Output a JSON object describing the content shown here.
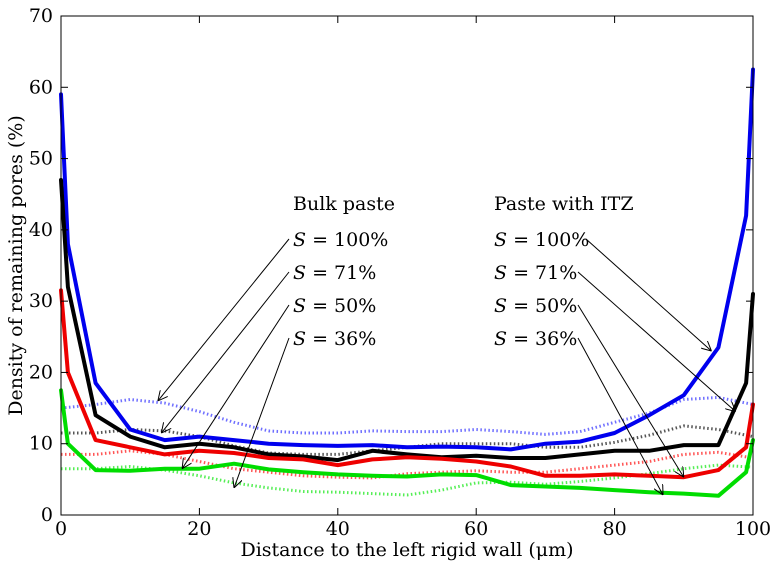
{
  "chart_data": {
    "type": "line",
    "xlabel": "Distance to the left rigid wall (μm)",
    "ylabel": "Density of remaining pores (%)",
    "xlim": [
      0,
      100
    ],
    "ylim": [
      0,
      70
    ],
    "xticks": [
      0,
      20,
      40,
      60,
      80,
      100
    ],
    "yticks": [
      0,
      10,
      20,
      30,
      40,
      50,
      60,
      70
    ],
    "grid": false,
    "series": [
      {
        "key": "itz-100",
        "color": "#0000ee",
        "style": "solid",
        "x": [
          0,
          1,
          5,
          10,
          15,
          20,
          25,
          30,
          35,
          40,
          45,
          50,
          55,
          60,
          65,
          70,
          75,
          80,
          85,
          90,
          95,
          99,
          100
        ],
        "y": [
          59,
          38,
          18.5,
          12,
          10.5,
          11,
          10.5,
          10,
          9.8,
          9.7,
          9.8,
          9.5,
          9.6,
          9.5,
          9.2,
          10,
          10.3,
          11.5,
          14,
          16.8,
          23.5,
          42,
          62.5
        ]
      },
      {
        "key": "itz-71",
        "color": "#000000",
        "style": "solid",
        "x": [
          0,
          1,
          5,
          10,
          15,
          20,
          25,
          30,
          35,
          40,
          45,
          50,
          55,
          60,
          65,
          70,
          75,
          80,
          85,
          90,
          95,
          99,
          100
        ],
        "y": [
          47,
          32,
          14,
          11,
          9.5,
          10,
          9.5,
          8.5,
          8.2,
          7.7,
          9,
          8.5,
          8.1,
          8.3,
          8,
          8,
          8.5,
          9,
          9,
          9.8,
          9.8,
          18.5,
          31
        ]
      },
      {
        "key": "itz-50",
        "color": "#ee0000",
        "style": "solid",
        "x": [
          0,
          1,
          5,
          10,
          15,
          20,
          25,
          30,
          35,
          40,
          45,
          50,
          55,
          60,
          65,
          70,
          75,
          80,
          85,
          90,
          95,
          99,
          100
        ],
        "y": [
          31.5,
          20,
          10.5,
          9.5,
          8.5,
          9,
          8.7,
          8,
          7.8,
          7,
          7.8,
          8.1,
          7.9,
          7.5,
          6.8,
          5.5,
          5.5,
          5.7,
          5.5,
          5.3,
          6.3,
          9.5,
          15.5
        ]
      },
      {
        "key": "itz-36",
        "color": "#00dd00",
        "style": "solid",
        "x": [
          0,
          1,
          5,
          10,
          15,
          20,
          25,
          30,
          35,
          40,
          45,
          50,
          55,
          60,
          65,
          70,
          75,
          80,
          85,
          90,
          95,
          99,
          100
        ],
        "y": [
          17.5,
          10,
          6.3,
          6.2,
          6.5,
          6.5,
          7.2,
          6.4,
          6,
          5.7,
          5.5,
          5.4,
          5.7,
          5.6,
          4.2,
          4,
          3.8,
          3.5,
          3.2,
          3,
          2.7,
          6,
          10.5
        ]
      },
      {
        "key": "bulk-100",
        "color": "#6f6fff",
        "style": "dotted",
        "x": [
          0,
          5,
          10,
          15,
          20,
          25,
          30,
          35,
          40,
          45,
          50,
          55,
          60,
          65,
          70,
          75,
          80,
          85,
          90,
          95,
          100
        ],
        "y": [
          15,
          15.5,
          16.2,
          15.7,
          14.5,
          13,
          11.8,
          11.5,
          11.5,
          11.8,
          11.7,
          11.7,
          12,
          11.7,
          11.3,
          11.7,
          13,
          14.3,
          16.2,
          16.5,
          15.5
        ]
      },
      {
        "key": "bulk-71",
        "color": "#555555",
        "style": "dotted",
        "x": [
          0,
          5,
          10,
          15,
          20,
          25,
          30,
          35,
          40,
          45,
          50,
          55,
          60,
          65,
          70,
          75,
          80,
          85,
          90,
          95,
          100
        ],
        "y": [
          11.5,
          11.5,
          12,
          11.8,
          11,
          9.7,
          8.7,
          8.5,
          8.5,
          9,
          9.5,
          10,
          10,
          10,
          9.5,
          9.5,
          10.2,
          11.2,
          12.5,
          12,
          11
        ]
      },
      {
        "key": "bulk-50",
        "color": "#ff5555",
        "style": "dotted",
        "x": [
          0,
          5,
          10,
          15,
          20,
          25,
          30,
          35,
          40,
          45,
          50,
          55,
          60,
          65,
          70,
          75,
          80,
          85,
          90,
          95,
          100
        ],
        "y": [
          8.5,
          8.5,
          9,
          8.5,
          7.5,
          6.5,
          6,
          5.5,
          5.3,
          5.2,
          5.8,
          6,
          6.2,
          6,
          6,
          6.5,
          7,
          7.5,
          8.5,
          8.8,
          8
        ]
      },
      {
        "key": "bulk-36",
        "color": "#55ee55",
        "style": "dotted",
        "x": [
          0,
          5,
          10,
          15,
          20,
          25,
          30,
          35,
          40,
          45,
          50,
          55,
          60,
          65,
          70,
          75,
          80,
          85,
          90,
          95,
          100
        ],
        "y": [
          6.5,
          6.5,
          6.8,
          6.3,
          5.5,
          4.5,
          3.8,
          3.3,
          3.2,
          3,
          2.8,
          3.5,
          4.5,
          4.6,
          4.3,
          4.7,
          5.2,
          5.8,
          6.5,
          7,
          6.7
        ]
      }
    ],
    "annotations": {
      "bulk": {
        "heading": "Bulk paste",
        "items": [
          {
            "var": "S",
            "text": " = 100%",
            "target": "bulk-100",
            "tx": 14,
            "ty": 16
          },
          {
            "var": "S",
            "text": " = 71%",
            "target": "bulk-71",
            "tx": 14.5,
            "ty": 11.5
          },
          {
            "var": "S",
            "text": " = 50%",
            "target": "bulk-50",
            "tx": 17.5,
            "ty": 6.5
          },
          {
            "var": "S",
            "text": " = 36%",
            "target": "bulk-36",
            "tx": 25,
            "ty": 3.8
          }
        ]
      },
      "itz": {
        "heading": "Paste with ITZ",
        "items": [
          {
            "var": "S",
            "text": " = 100%",
            "target": "itz-100",
            "tx": 94,
            "ty": 23
          },
          {
            "var": "S",
            "text": " = 71%",
            "target": "itz-71",
            "tx": 97.5,
            "ty": 14.5
          },
          {
            "var": "S",
            "text": " = 50%",
            "target": "itz-50",
            "tx": 90,
            "ty": 5.3
          },
          {
            "var": "S",
            "text": " = 36%",
            "target": "itz-36",
            "tx": 87,
            "ty": 2.8
          }
        ]
      }
    }
  }
}
